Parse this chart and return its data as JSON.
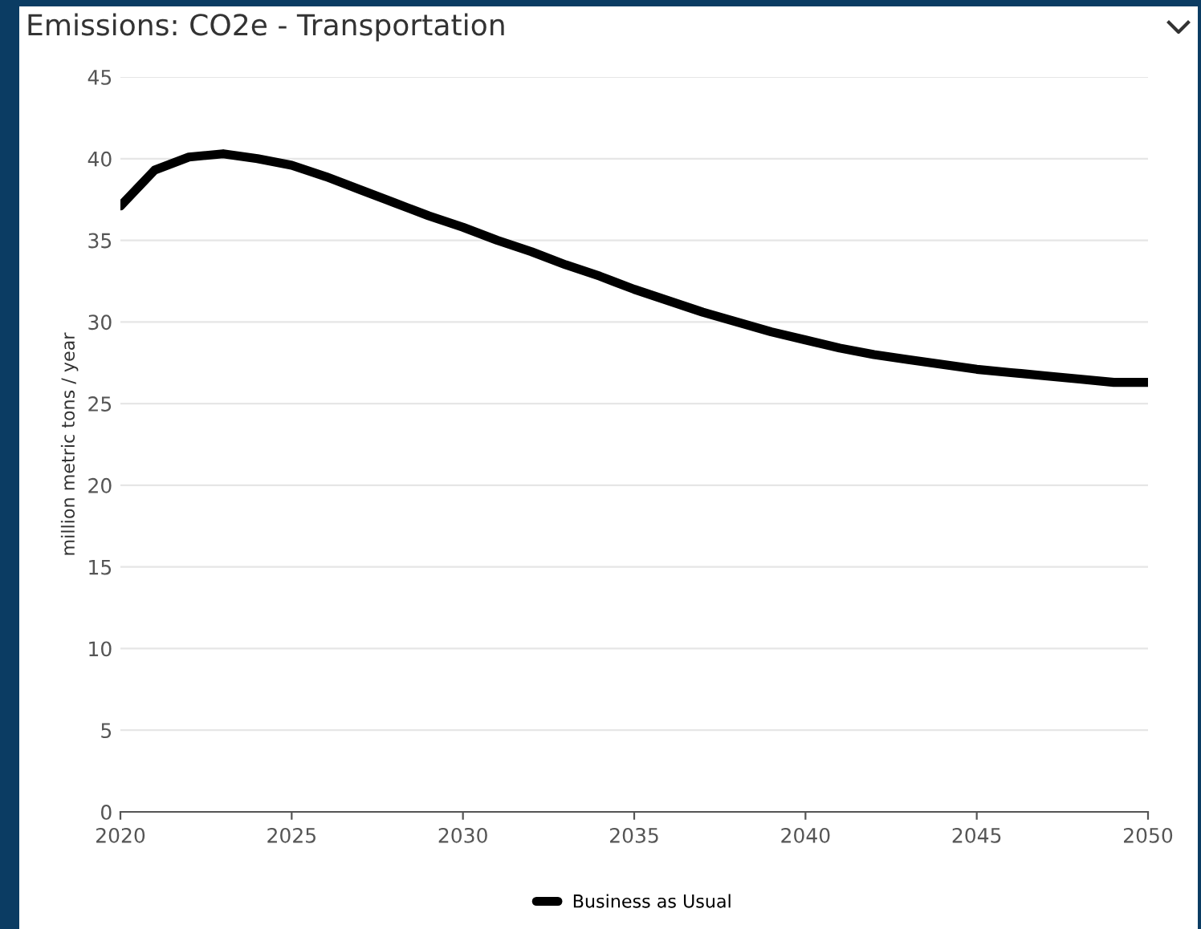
{
  "chart_data": {
    "type": "line",
    "title": "Emissions: CO2e - Transportation",
    "ylabel": "million metric tons / year",
    "x": [
      2020,
      2021,
      2022,
      2023,
      2024,
      2025,
      2026,
      2027,
      2028,
      2029,
      2030,
      2031,
      2032,
      2033,
      2034,
      2035,
      2036,
      2037,
      2038,
      2039,
      2040,
      2041,
      2042,
      2043,
      2044,
      2045,
      2046,
      2047,
      2048,
      2049,
      2050
    ],
    "series": [
      {
        "name": "Business as Usual",
        "color": "#000000",
        "values": [
          37.1,
          39.3,
          40.1,
          40.3,
          40.0,
          39.6,
          38.9,
          38.1,
          37.3,
          36.5,
          35.8,
          35.0,
          34.3,
          33.5,
          32.8,
          32.0,
          31.3,
          30.6,
          30.0,
          29.4,
          28.9,
          28.4,
          28.0,
          27.7,
          27.4,
          27.1,
          26.9,
          26.7,
          26.5,
          26.3,
          26.3
        ]
      }
    ],
    "xlim": [
      2020,
      2050
    ],
    "xticks": [
      2020,
      2025,
      2030,
      2035,
      2040,
      2045,
      2050
    ],
    "ylim": [
      0,
      45
    ],
    "yticks": [
      0,
      5,
      10,
      15,
      20,
      25,
      30,
      35,
      40,
      45
    ],
    "grid": "y",
    "legend": "bottom",
    "marker": "none",
    "line_style": "solid"
  }
}
